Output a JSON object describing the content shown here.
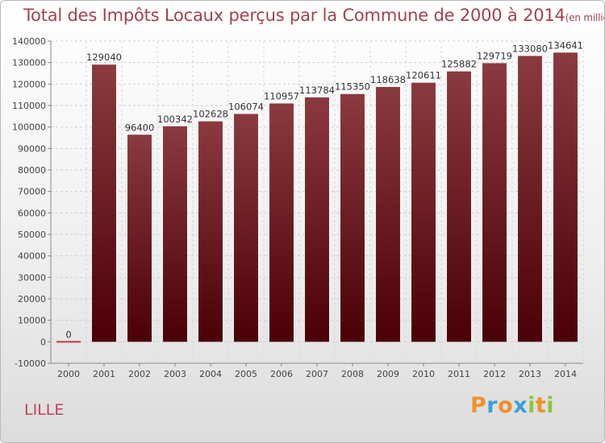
{
  "header": {
    "title": "Total des Impôts Locaux perçus par la Commune de 2000 à 2014",
    "subtitle": "(en milliers d'€)"
  },
  "commune": "LILLE",
  "logo": {
    "letters": [
      "P",
      "r",
      "o",
      "x",
      "i",
      "t",
      "i"
    ],
    "colors": [
      "#f0902a",
      "#3aa0d8",
      "#f0902a",
      "#3aa0d8",
      "#8cc63f",
      "#f0902a",
      "#8cc63f"
    ]
  },
  "chart_data": {
    "type": "bar",
    "title": "Total des Impôts Locaux perçus par la Commune de 2000 à 2014",
    "subtitle": "(en milliers d'€)",
    "categories": [
      "2000",
      "2001",
      "2002",
      "2003",
      "2004",
      "2005",
      "2006",
      "2007",
      "2008",
      "2009",
      "2010",
      "2011",
      "2012",
      "2013",
      "2014"
    ],
    "values": [
      0,
      129040,
      96400,
      100342,
      102628,
      106074,
      110957,
      113784,
      115350,
      118638,
      120611,
      125882,
      129719,
      133080,
      134641
    ],
    "ylim": [
      -10000,
      140000
    ],
    "yticks": [
      -10000,
      0,
      10000,
      20000,
      30000,
      40000,
      50000,
      60000,
      70000,
      80000,
      90000,
      100000,
      110000,
      120000,
      130000,
      140000
    ],
    "grid": true,
    "bar_color": "#7a2a30"
  }
}
